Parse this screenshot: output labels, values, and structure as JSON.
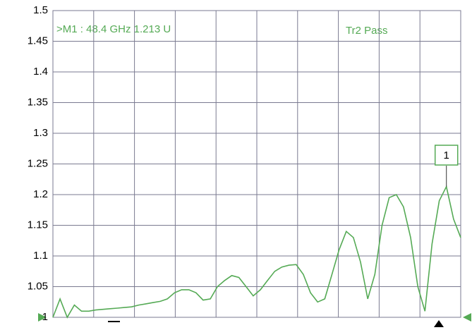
{
  "chart_data": {
    "type": "line",
    "annotations": [
      ">M1  :  48.4 GHz  1.213  U",
      "Tr2 Pass"
    ],
    "marker_label": "1",
    "series": [
      {
        "color": "#55aa55",
        "values": [
          1.0,
          1.03,
          1.0,
          1.02,
          1.01,
          1.01,
          1.012,
          1.013,
          1.014,
          1.015,
          1.016,
          1.017,
          1.02,
          1.022,
          1.024,
          1.026,
          1.03,
          1.04,
          1.045,
          1.045,
          1.04,
          1.028,
          1.03,
          1.05,
          1.06,
          1.068,
          1.065,
          1.05,
          1.035,
          1.045,
          1.06,
          1.075,
          1.082,
          1.085,
          1.086,
          1.07,
          1.04,
          1.025,
          1.03,
          1.07,
          1.11,
          1.14,
          1.13,
          1.09,
          1.03,
          1.07,
          1.15,
          1.195,
          1.2,
          1.18,
          1.13,
          1.05,
          1.01,
          1.12,
          1.19,
          1.213,
          1.16,
          1.13
        ]
      }
    ],
    "ylim": [
      1,
      1.5
    ],
    "yticks": [
      1.5,
      1.45,
      1.4,
      1.35,
      1.3,
      1.25,
      1.2,
      1.15,
      1.1,
      1.05,
      1
    ],
    "grid": true
  }
}
